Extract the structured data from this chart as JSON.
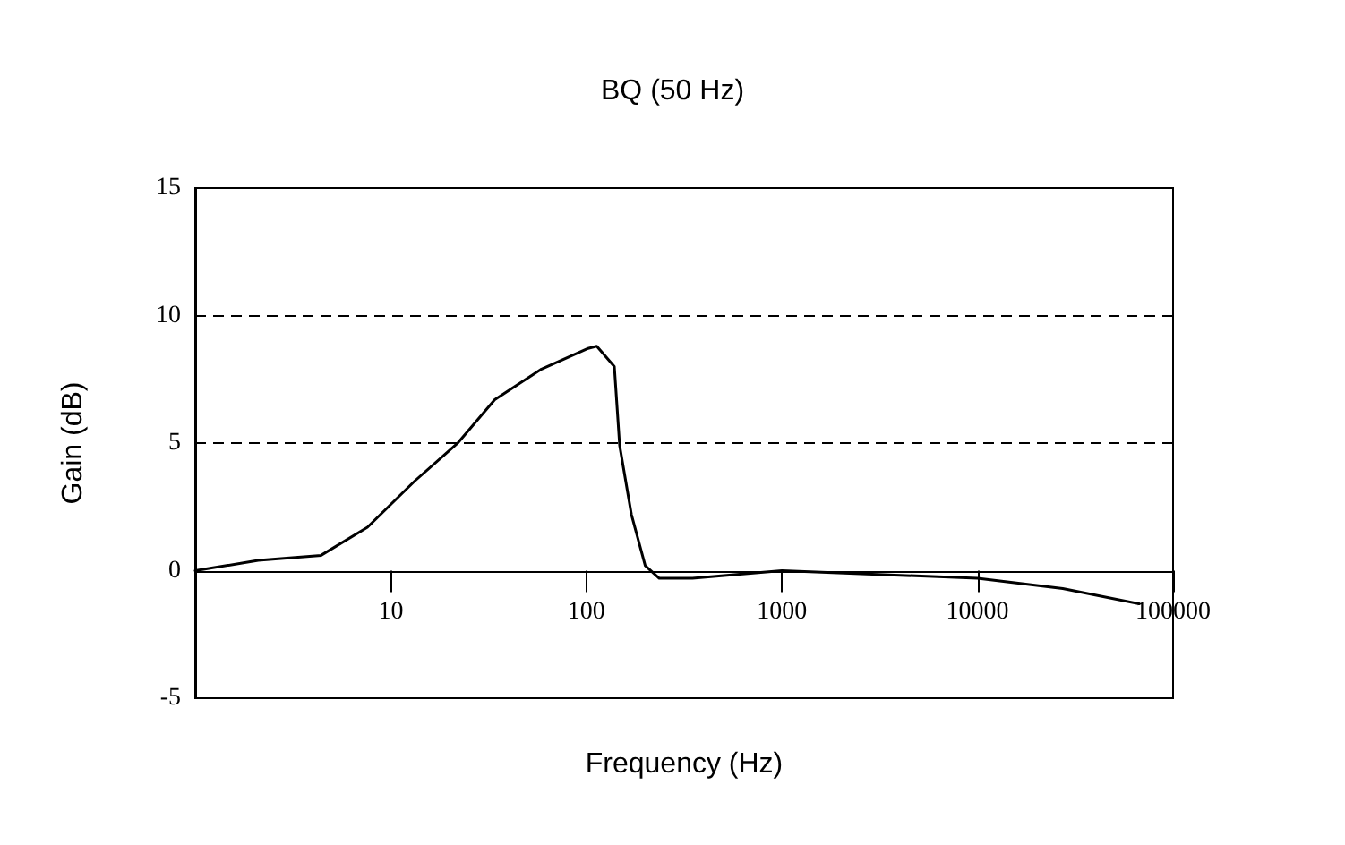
{
  "chart_data": {
    "type": "line",
    "title": "BQ (50 Hz)",
    "xlabel": "Frequency (Hz)",
    "ylabel": "Gain (dB)",
    "log": "x",
    "x": [
      1,
      2.1,
      4.4,
      7.6,
      13.2,
      22,
      34,
      59,
      101,
      113,
      139,
      148,
      170,
      200,
      236,
      349,
      1000,
      10000,
      27300,
      67100
    ],
    "series": [
      {
        "color": "#000000",
        "values": [
          0,
          0.4,
          0.6,
          1.7,
          3.5,
          5.0,
          6.7,
          7.9,
          8.7,
          8.8,
          8.0,
          4.9,
          2.2,
          0.2,
          -0.3,
          -0.3,
          0,
          -0.3,
          -0.7,
          -1.3
        ]
      }
    ],
    "xlim": [
      1,
      100000
    ],
    "xticks": [
      10,
      100,
      1000,
      10000,
      100000
    ],
    "ylim": [
      -5,
      15
    ],
    "yticks": [
      -5,
      0,
      5,
      10,
      15
    ],
    "ref_lines": [
      {
        "axis": "y",
        "value": 5,
        "line_style": "dashed"
      },
      {
        "axis": "y",
        "value": 10,
        "line_style": "dashed"
      }
    ],
    "grid": false,
    "marker": "none",
    "line_style": "solid"
  }
}
